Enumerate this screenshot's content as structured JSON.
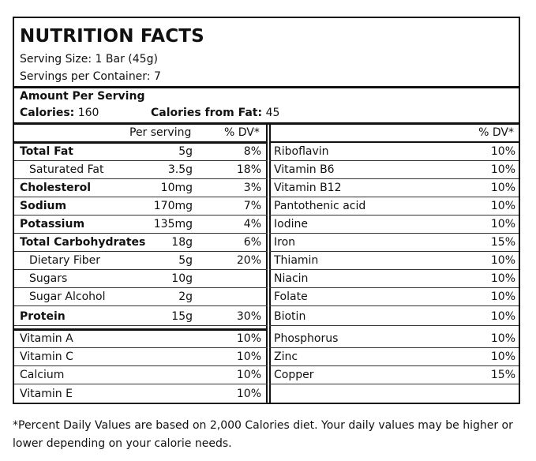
{
  "title": "NUTRITION FACTS",
  "serving_size": "Serving Size: 1 Bar (45g)",
  "servings_per_container": "Servings per Container: 7",
  "amount_per_serving": "Amount Per Serving",
  "calories_label": "Calories:",
  "calories_value": "160",
  "calories_fat_label": "Calories from Fat:",
  "calories_fat_value": "45",
  "left_header": {
    "per_serving": "Per serving",
    "dv": "% DV*"
  },
  "right_header": {
    "dv": "% DV*"
  },
  "left_rows": [
    {
      "name": "Total Fat",
      "amount": "5g",
      "dv": "8%",
      "bold": true,
      "indent": false
    },
    {
      "name": "Saturated Fat",
      "amount": "3.5g",
      "dv": "18%",
      "bold": false,
      "indent": true
    },
    {
      "name": "Cholesterol",
      "amount": "10mg",
      "dv": "3%",
      "bold": true,
      "indent": false
    },
    {
      "name": "Sodium",
      "amount": "170mg",
      "dv": "7%",
      "bold": true,
      "indent": false
    },
    {
      "name": "Potassium",
      "amount": "135mg",
      "dv": "4%",
      "bold": true,
      "indent": false
    },
    {
      "name": "Total Carbohydrates",
      "amount": "18g",
      "dv": "6%",
      "bold": true,
      "indent": false
    },
    {
      "name": "Dietary Fiber",
      "amount": "5g",
      "dv": "20%",
      "bold": false,
      "indent": true
    },
    {
      "name": "Sugars",
      "amount": "10g",
      "dv": "",
      "bold": false,
      "indent": true
    },
    {
      "name": "Sugar Alcohol",
      "amount": "2g",
      "dv": "",
      "bold": false,
      "indent": true
    },
    {
      "name": "Protein",
      "amount": "15g",
      "dv": "30%",
      "bold": true,
      "indent": false
    }
  ],
  "left_vitamins": [
    {
      "name": "Vitamin A",
      "dv": "10%"
    },
    {
      "name": "Vitamin C",
      "dv": "10%"
    },
    {
      "name": "Calcium",
      "dv": "10%"
    },
    {
      "name": "Vitamin E",
      "dv": "10%"
    }
  ],
  "right_rows": [
    {
      "name": "Riboflavin",
      "dv": "10%"
    },
    {
      "name": "Vitamin B6",
      "dv": "10%"
    },
    {
      "name": "Vitamin B12",
      "dv": "10%"
    },
    {
      "name": "Pantothenic acid",
      "dv": "10%"
    },
    {
      "name": "Iodine",
      "dv": "10%"
    },
    {
      "name": "Iron",
      "dv": "15%"
    },
    {
      "name": "Thiamin",
      "dv": "10%"
    },
    {
      "name": "Niacin",
      "dv": "10%"
    },
    {
      "name": "Folate",
      "dv": "10%"
    },
    {
      "name": "Biotin",
      "dv": "10%"
    },
    {
      "name": "Phosphorus",
      "dv": "10%"
    },
    {
      "name": "Zinc",
      "dv": "10%"
    },
    {
      "name": "Copper",
      "dv": "15%"
    }
  ],
  "footnote": "*Percent Daily Values are based on 2,000 Calories diet. Your daily values may be higher or lower depending on your calorie needs."
}
